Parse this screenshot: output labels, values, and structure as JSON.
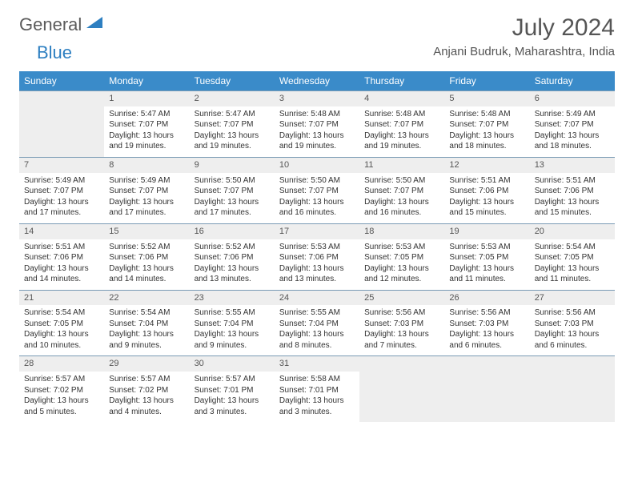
{
  "logo": {
    "part1": "General",
    "part2": "Blue",
    "triangle_color": "#2d7fc1"
  },
  "title": "July 2024",
  "location": "Anjani Budruk, Maharashtra, India",
  "header_bg": "#3a8bc9",
  "daynum_bg": "#eeeeee",
  "border_color": "#7a9bb5",
  "day_headers": [
    "Sunday",
    "Monday",
    "Tuesday",
    "Wednesday",
    "Thursday",
    "Friday",
    "Saturday"
  ],
  "weeks": [
    [
      null,
      {
        "n": "1",
        "sr": "5:47 AM",
        "ss": "7:07 PM",
        "dl": "13 hours and 19 minutes."
      },
      {
        "n": "2",
        "sr": "5:47 AM",
        "ss": "7:07 PM",
        "dl": "13 hours and 19 minutes."
      },
      {
        "n": "3",
        "sr": "5:48 AM",
        "ss": "7:07 PM",
        "dl": "13 hours and 19 minutes."
      },
      {
        "n": "4",
        "sr": "5:48 AM",
        "ss": "7:07 PM",
        "dl": "13 hours and 19 minutes."
      },
      {
        "n": "5",
        "sr": "5:48 AM",
        "ss": "7:07 PM",
        "dl": "13 hours and 18 minutes."
      },
      {
        "n": "6",
        "sr": "5:49 AM",
        "ss": "7:07 PM",
        "dl": "13 hours and 18 minutes."
      }
    ],
    [
      {
        "n": "7",
        "sr": "5:49 AM",
        "ss": "7:07 PM",
        "dl": "13 hours and 17 minutes."
      },
      {
        "n": "8",
        "sr": "5:49 AM",
        "ss": "7:07 PM",
        "dl": "13 hours and 17 minutes."
      },
      {
        "n": "9",
        "sr": "5:50 AM",
        "ss": "7:07 PM",
        "dl": "13 hours and 17 minutes."
      },
      {
        "n": "10",
        "sr": "5:50 AM",
        "ss": "7:07 PM",
        "dl": "13 hours and 16 minutes."
      },
      {
        "n": "11",
        "sr": "5:50 AM",
        "ss": "7:07 PM",
        "dl": "13 hours and 16 minutes."
      },
      {
        "n": "12",
        "sr": "5:51 AM",
        "ss": "7:06 PM",
        "dl": "13 hours and 15 minutes."
      },
      {
        "n": "13",
        "sr": "5:51 AM",
        "ss": "7:06 PM",
        "dl": "13 hours and 15 minutes."
      }
    ],
    [
      {
        "n": "14",
        "sr": "5:51 AM",
        "ss": "7:06 PM",
        "dl": "13 hours and 14 minutes."
      },
      {
        "n": "15",
        "sr": "5:52 AM",
        "ss": "7:06 PM",
        "dl": "13 hours and 14 minutes."
      },
      {
        "n": "16",
        "sr": "5:52 AM",
        "ss": "7:06 PM",
        "dl": "13 hours and 13 minutes."
      },
      {
        "n": "17",
        "sr": "5:53 AM",
        "ss": "7:06 PM",
        "dl": "13 hours and 13 minutes."
      },
      {
        "n": "18",
        "sr": "5:53 AM",
        "ss": "7:05 PM",
        "dl": "13 hours and 12 minutes."
      },
      {
        "n": "19",
        "sr": "5:53 AM",
        "ss": "7:05 PM",
        "dl": "13 hours and 11 minutes."
      },
      {
        "n": "20",
        "sr": "5:54 AM",
        "ss": "7:05 PM",
        "dl": "13 hours and 11 minutes."
      }
    ],
    [
      {
        "n": "21",
        "sr": "5:54 AM",
        "ss": "7:05 PM",
        "dl": "13 hours and 10 minutes."
      },
      {
        "n": "22",
        "sr": "5:54 AM",
        "ss": "7:04 PM",
        "dl": "13 hours and 9 minutes."
      },
      {
        "n": "23",
        "sr": "5:55 AM",
        "ss": "7:04 PM",
        "dl": "13 hours and 9 minutes."
      },
      {
        "n": "24",
        "sr": "5:55 AM",
        "ss": "7:04 PM",
        "dl": "13 hours and 8 minutes."
      },
      {
        "n": "25",
        "sr": "5:56 AM",
        "ss": "7:03 PM",
        "dl": "13 hours and 7 minutes."
      },
      {
        "n": "26",
        "sr": "5:56 AM",
        "ss": "7:03 PM",
        "dl": "13 hours and 6 minutes."
      },
      {
        "n": "27",
        "sr": "5:56 AM",
        "ss": "7:03 PM",
        "dl": "13 hours and 6 minutes."
      }
    ],
    [
      {
        "n": "28",
        "sr": "5:57 AM",
        "ss": "7:02 PM",
        "dl": "13 hours and 5 minutes."
      },
      {
        "n": "29",
        "sr": "5:57 AM",
        "ss": "7:02 PM",
        "dl": "13 hours and 4 minutes."
      },
      {
        "n": "30",
        "sr": "5:57 AM",
        "ss": "7:01 PM",
        "dl": "13 hours and 3 minutes."
      },
      {
        "n": "31",
        "sr": "5:58 AM",
        "ss": "7:01 PM",
        "dl": "13 hours and 3 minutes."
      },
      null,
      null,
      null
    ]
  ],
  "labels": {
    "sunrise": "Sunrise:",
    "sunset": "Sunset:",
    "daylight": "Daylight:"
  }
}
